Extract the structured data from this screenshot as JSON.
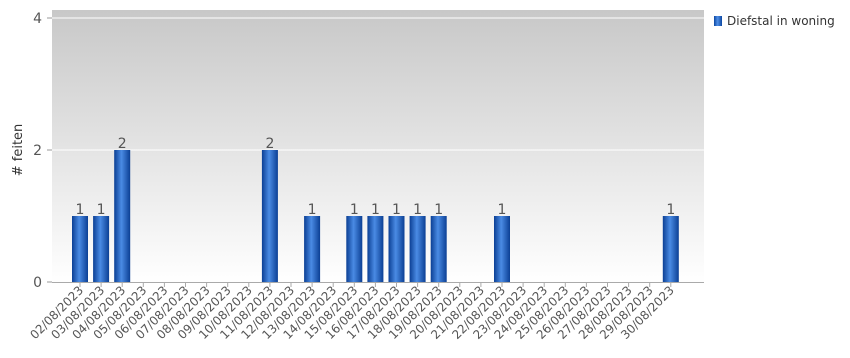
{
  "chart_data": {
    "type": "bar",
    "ylabel": "# feiten",
    "xlabel": "",
    "ylim": [
      0,
      4
    ],
    "yticks": [
      0,
      2,
      4
    ],
    "categories": [
      "02/08/2023",
      "03/08/2023",
      "04/08/2023",
      "05/08/2023",
      "06/08/2023",
      "07/08/2023",
      "08/08/2023",
      "09/08/2023",
      "10/08/2023",
      "11/08/2023",
      "12/08/2023",
      "13/08/2023",
      "14/08/2023",
      "15/08/2023",
      "16/08/2023",
      "17/08/2023",
      "18/08/2023",
      "19/08/2023",
      "20/08/2023",
      "21/08/2023",
      "22/08/2023",
      "23/08/2023",
      "24/08/2023",
      "25/08/2023",
      "26/08/2023",
      "27/08/2023",
      "28/08/2023",
      "29/08/2023",
      "30/08/2023"
    ],
    "series": [
      {
        "name": "Diefstal in woning",
        "color": "#1565c0",
        "values": [
          1,
          1,
          2,
          0,
          0,
          0,
          0,
          0,
          0,
          2,
          0,
          1,
          0,
          1,
          1,
          1,
          1,
          1,
          0,
          0,
          1,
          0,
          0,
          0,
          0,
          0,
          0,
          0,
          1
        ]
      }
    ],
    "grid": true,
    "legend_position": "top-right"
  }
}
